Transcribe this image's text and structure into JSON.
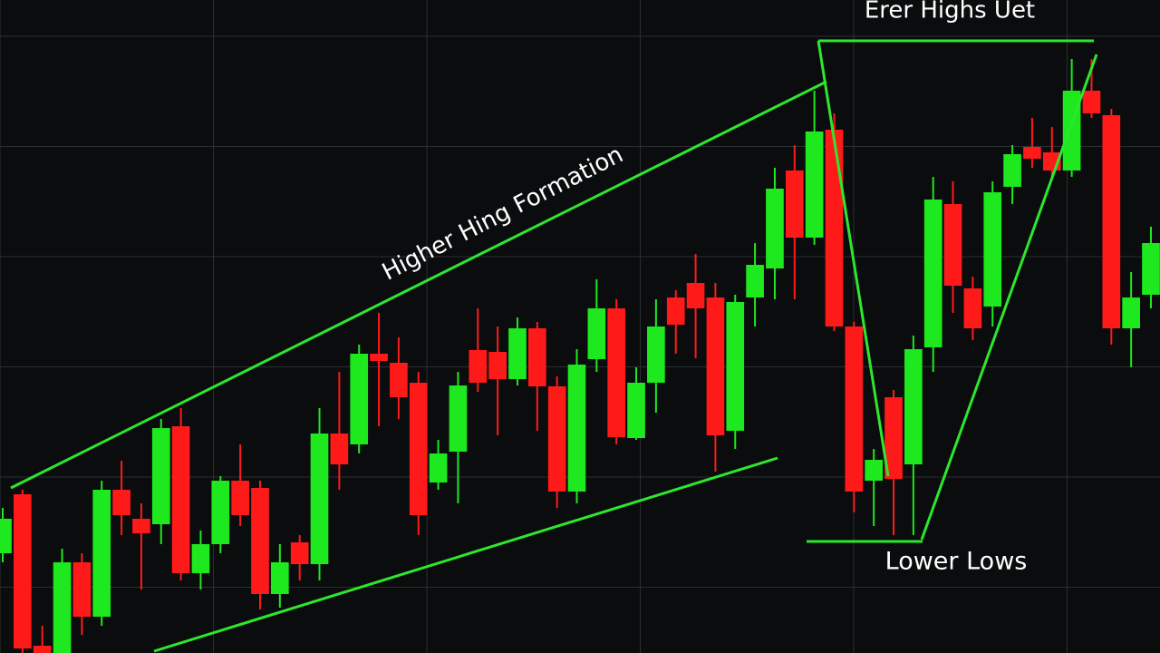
{
  "chart_data": {
    "type": "candlestick",
    "open": [
      110,
      175,
      8,
      0,
      100,
      40,
      180,
      148,
      142,
      250,
      88,
      120,
      190,
      182,
      65,
      122,
      98,
      242,
      230,
      330,
      320,
      298,
      188,
      222,
      334,
      332,
      302,
      358,
      294,
      178,
      324,
      380,
      237,
      298,
      392,
      408,
      392,
      245,
      392,
      424,
      532,
      458,
      577,
      360,
      190,
      282,
      208,
      337,
      495,
      402,
      382,
      514,
      558,
      552,
      532,
      620,
      593,
      358,
      395
    ],
    "high": [
      160,
      180,
      30,
      115,
      110,
      190,
      212,
      165,
      258,
      270,
      135,
      195,
      230,
      190,
      120,
      130,
      270,
      310,
      340,
      375,
      348,
      310,
      235,
      310,
      380,
      360,
      370,
      365,
      305,
      335,
      412,
      390,
      315,
      390,
      400,
      440,
      408,
      395,
      452,
      535,
      560,
      620,
      595,
      365,
      225,
      290,
      350,
      525,
      520,
      415,
      520,
      560,
      590,
      580,
      655,
      655,
      600,
      420,
      470
    ],
    "low": [
      100,
      0,
      0,
      0,
      20,
      30,
      130,
      70,
      120,
      80,
      70,
      110,
      140,
      48,
      50,
      80,
      80,
      180,
      220,
      250,
      258,
      130,
      180,
      165,
      288,
      240,
      295,
      245,
      160,
      165,
      310,
      230,
      235,
      265,
      330,
      325,
      200,
      225,
      360,
      390,
      390,
      450,
      355,
      155,
      140,
      130,
      130,
      310,
      375,
      345,
      360,
      495,
      535,
      525,
      525,
      590,
      340,
      315,
      380
    ],
    "close": [
      148,
      5,
      0,
      100,
      40,
      180,
      152,
      132,
      248,
      88,
      120,
      190,
      152,
      65,
      100,
      98,
      242,
      208,
      330,
      322,
      282,
      152,
      220,
      295,
      298,
      302,
      358,
      294,
      178,
      318,
      380,
      238,
      298,
      360,
      362,
      380,
      240,
      387,
      428,
      512,
      458,
      575,
      360,
      178,
      213,
      192,
      335,
      500,
      405,
      358,
      508,
      550,
      545,
      532,
      620,
      595,
      358,
      392,
      452
    ],
    "up_color": "#1ee81e",
    "down_color": "#ff1a1a",
    "ylim": [
      0,
      720
    ],
    "grid": true,
    "annotations": [
      "Higher Hing Formation",
      "Erer Highs Uet",
      "Lower Lows"
    ]
  }
}
